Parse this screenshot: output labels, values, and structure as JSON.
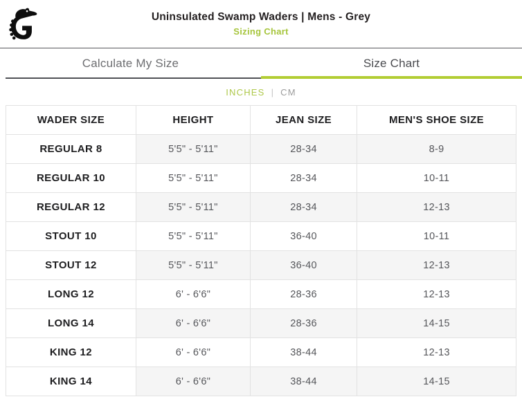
{
  "header": {
    "title": "Uninsulated Swamp Waders | Mens - Grey",
    "subtitle": "Sizing Chart",
    "logo": "gator-brand-logo"
  },
  "tabs": [
    {
      "label": "Calculate My Size",
      "active": false
    },
    {
      "label": "Size Chart",
      "active": true
    }
  ],
  "units": {
    "separator": "|",
    "options": [
      {
        "label": "INCHES",
        "active": true
      },
      {
        "label": "CM",
        "active": false
      }
    ]
  },
  "colors": {
    "accent_green": "#b2cd33",
    "subtitle_green": "#a6c53c",
    "active_tab_text": "#4a4b4f",
    "inactive_tab_text": "#6d6e71",
    "body_text": "#55565a",
    "stripe": "#f5f5f5",
    "border": "#e2e2e2"
  },
  "table": {
    "columns": [
      "WADER SIZE",
      "HEIGHT",
      "JEAN SIZE",
      "MEN'S SHOE SIZE"
    ],
    "rows": [
      [
        "REGULAR 8",
        "5'5\" - 5'11\"",
        "28-34",
        "8-9"
      ],
      [
        "REGULAR 10",
        "5'5\" - 5'11\"",
        "28-34",
        "10-11"
      ],
      [
        "REGULAR 12",
        "5'5\" - 5'11\"",
        "28-34",
        "12-13"
      ],
      [
        "STOUT 10",
        "5'5\" - 5'11\"",
        "36-40",
        "10-11"
      ],
      [
        "STOUT 12",
        "5'5\" - 5'11\"",
        "36-40",
        "12-13"
      ],
      [
        "LONG 12",
        "6' - 6'6\"",
        "28-36",
        "12-13"
      ],
      [
        "LONG 14",
        "6' - 6'6\"",
        "28-36",
        "14-15"
      ],
      [
        "KING 12",
        "6' - 6'6\"",
        "38-44",
        "12-13"
      ],
      [
        "KING 14",
        "6' - 6'6\"",
        "38-44",
        "14-15"
      ]
    ]
  }
}
